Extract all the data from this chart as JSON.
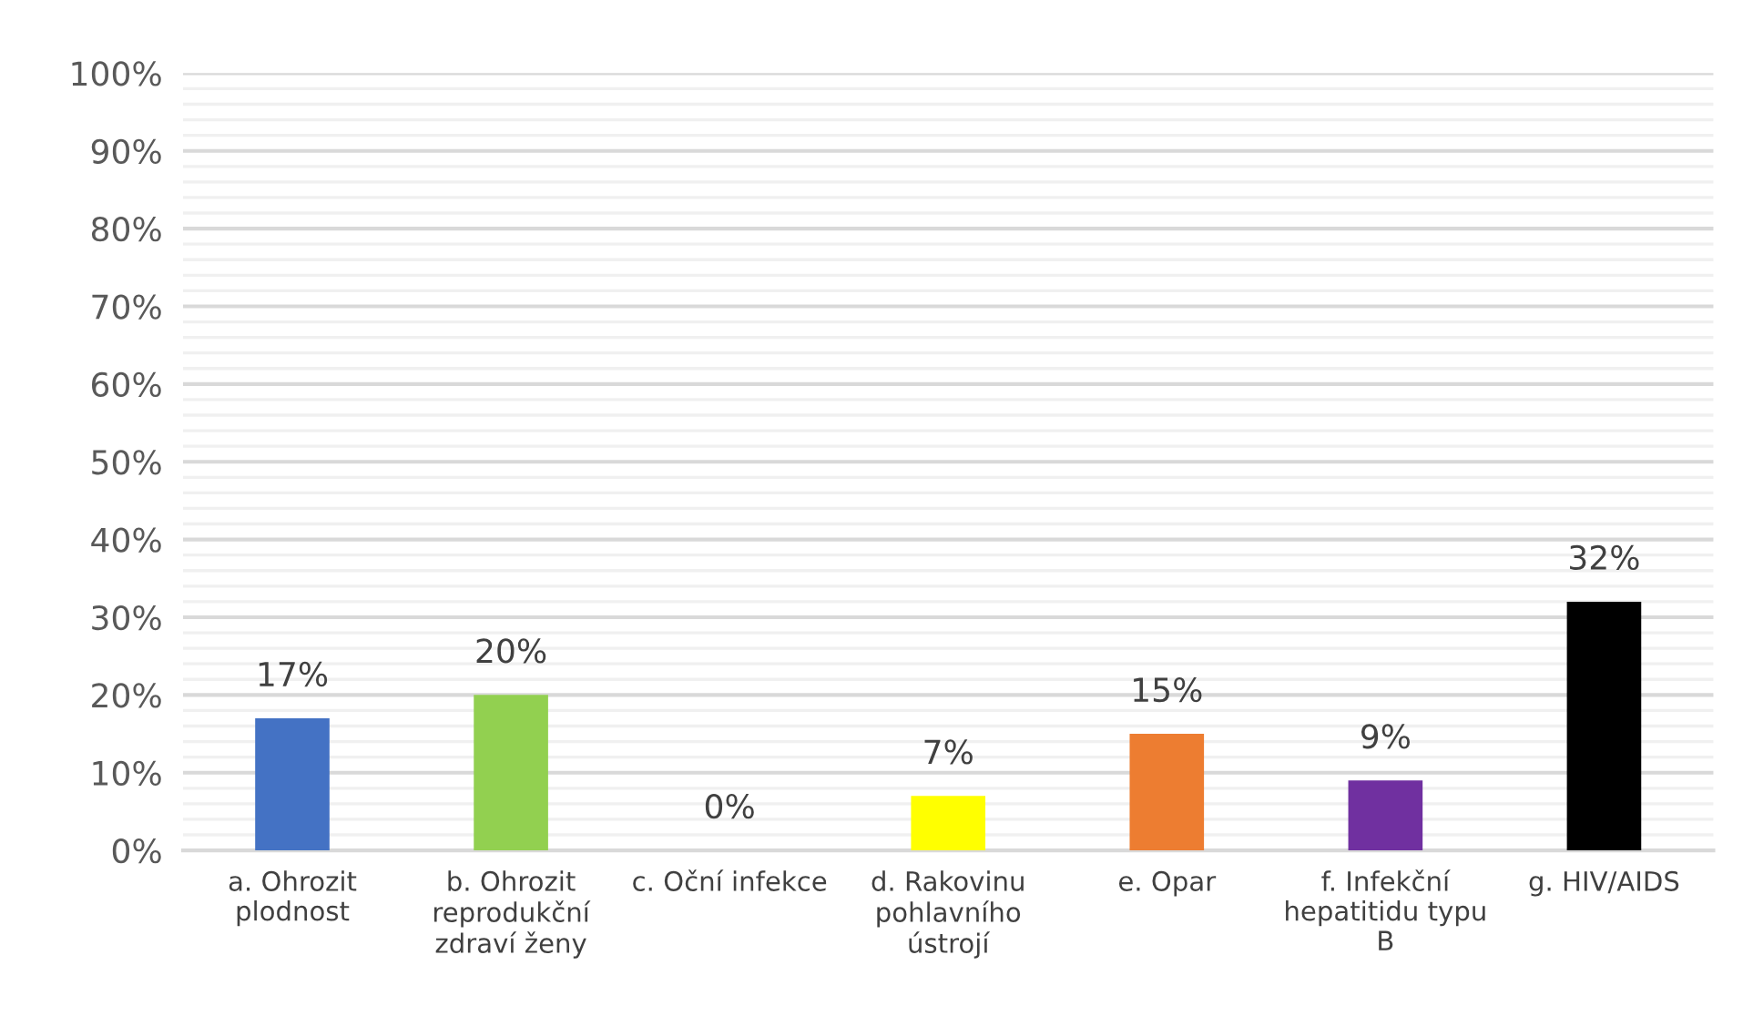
{
  "chart_data": {
    "type": "bar",
    "categories": [
      "a. Ohrozit\nplodnost",
      "b. Ohrozit\nreprodukční\nzdraví ženy",
      "c. Oční infekce",
      "d. Rakovinu\npohlavního\nústrojí",
      "e. Opar",
      "f. Infekční\nhepatitidu typu\nB",
      "g. HIV/AIDS"
    ],
    "values": [
      17,
      20,
      0,
      7,
      15,
      9,
      32
    ],
    "colors": [
      "#4472c4",
      "#92d050",
      "#a5a5a5",
      "#ffff00",
      "#ed7d31",
      "#7030a0",
      "#000000"
    ],
    "value_labels": [
      "17%",
      "20%",
      "0%",
      "7%",
      "15%",
      "9%",
      "32%"
    ],
    "ylim": [
      0,
      100
    ],
    "yticks": [
      {
        "value": 0,
        "label": "0%"
      },
      {
        "value": 10,
        "label": "10%"
      },
      {
        "value": 20,
        "label": "20%"
      },
      {
        "value": 30,
        "label": "30%"
      },
      {
        "value": 40,
        "label": "40%"
      },
      {
        "value": 50,
        "label": "50%"
      },
      {
        "value": 60,
        "label": "60%"
      },
      {
        "value": 70,
        "label": "70%"
      },
      {
        "value": 80,
        "label": "80%"
      },
      {
        "value": 90,
        "label": "90%"
      },
      {
        "value": 100,
        "label": "100%"
      }
    ],
    "grid": "y"
  }
}
